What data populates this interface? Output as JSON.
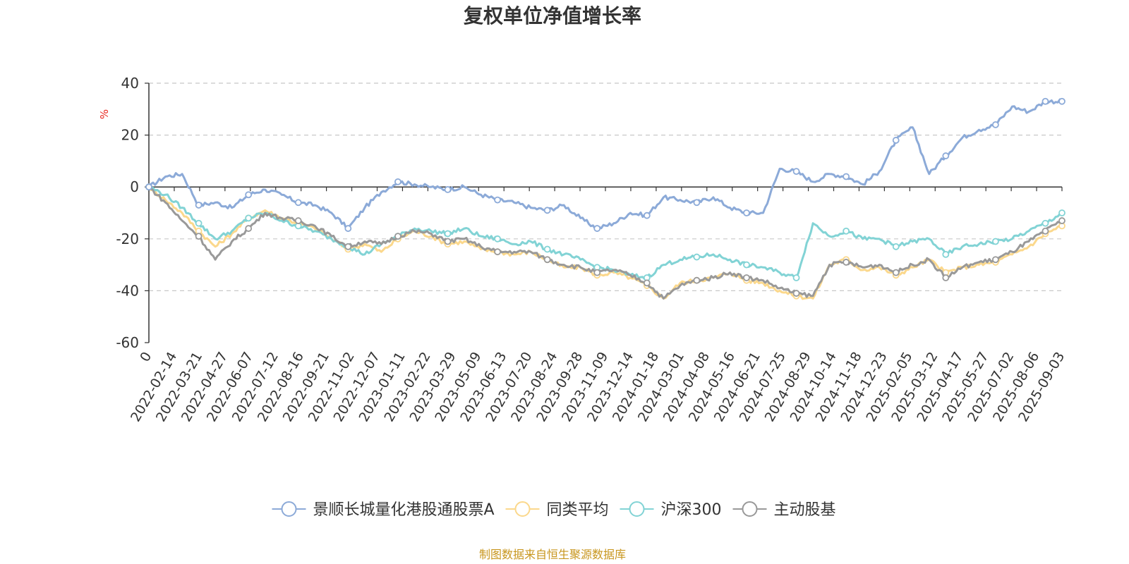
{
  "colors": {
    "series": [
      "#8caad8",
      "#fbd88c",
      "#82d3d5",
      "#999999"
    ],
    "source": "#c8961e",
    "unit": "#e8261f",
    "grid": "#c8c8c8",
    "axis": "#333333"
  },
  "source_text": "制图数据来自恒生聚源数据库",
  "chart_data": {
    "type": "line",
    "title": "复权单位净值增长率",
    "ylabel": "%",
    "xlabel": "",
    "ylim": [
      -60,
      40
    ],
    "yticks": [
      40,
      20,
      0,
      -20,
      -40,
      -60
    ],
    "grid": "horizontal dashed",
    "legend_position": "bottom-center",
    "x_ticks": [
      "0",
      "2022-02-14",
      "2022-03-21",
      "2022-04-27",
      "2022-06-07",
      "2022-07-12",
      "2022-08-16",
      "2022-09-21",
      "2022-11-02",
      "2022-12-07",
      "2023-01-11",
      "2023-02-22",
      "2023-03-29",
      "2023-05-09",
      "2023-06-13",
      "2023-07-20",
      "2023-08-24",
      "2023-09-28",
      "2023-11-09",
      "2023-12-14",
      "2024-01-18",
      "2024-03-01",
      "2024-04-08",
      "2024-05-16",
      "2024-06-21",
      "2024-07-25",
      "2024-08-29",
      "2024-10-14",
      "2024-11-18",
      "2024-12-23",
      "2025-02-05",
      "2025-03-12",
      "2025-04-17",
      "2025-05-27",
      "2025-07-02",
      "2025-08-06",
      "2025-09-03"
    ],
    "series": [
      {
        "name": "景顺长城量化港股通股票A",
        "color": "#8caad8",
        "values": [
          0,
          4,
          5,
          -7,
          -6,
          -8,
          -3,
          -1,
          -3,
          -6,
          -7,
          -10,
          -16,
          -8,
          -2,
          2,
          1,
          0,
          -1,
          0,
          -3,
          -5,
          -6,
          -8,
          -9,
          -7,
          -12,
          -16,
          -14,
          -10,
          -11,
          -4,
          -5,
          -6,
          -4,
          -8,
          -10,
          -10,
          7,
          6,
          2,
          5,
          4,
          1,
          6,
          18,
          23,
          5,
          12,
          19,
          22,
          24,
          31,
          29,
          33,
          33
        ]
      },
      {
        "name": "同类平均",
        "color": "#fbd88c",
        "values": [
          0,
          -5,
          -10,
          -17,
          -23,
          -18,
          -12,
          -9,
          -12,
          -14,
          -16,
          -20,
          -24,
          -22,
          -25,
          -20,
          -17,
          -19,
          -22,
          -21,
          -24,
          -25,
          -26,
          -25,
          -28,
          -31,
          -31,
          -34,
          -33,
          -35,
          -38,
          -43,
          -37,
          -36,
          -35,
          -33,
          -36,
          -37,
          -40,
          -42,
          -43,
          -30,
          -28,
          -32,
          -31,
          -34,
          -31,
          -28,
          -33,
          -31,
          -30,
          -29,
          -26,
          -23,
          -18,
          -15
        ]
      },
      {
        "name": "沪深300",
        "color": "#82d3d5",
        "values": [
          0,
          -3,
          -8,
          -14,
          -20,
          -17,
          -12,
          -10,
          -13,
          -15,
          -17,
          -20,
          -23,
          -26,
          -22,
          -19,
          -16,
          -17,
          -18,
          -16,
          -19,
          -20,
          -22,
          -21,
          -24,
          -26,
          -28,
          -31,
          -32,
          -34,
          -35,
          -30,
          -28,
          -27,
          -26,
          -28,
          -30,
          -31,
          -33,
          -35,
          -14,
          -19,
          -17,
          -20,
          -20,
          -23,
          -21,
          -20,
          -26,
          -23,
          -22,
          -21,
          -20,
          -17,
          -14,
          -10
        ]
      },
      {
        "name": "主动股基",
        "color": "#999999",
        "values": [
          0,
          -6,
          -13,
          -19,
          -28,
          -21,
          -16,
          -10,
          -12,
          -13,
          -15,
          -19,
          -23,
          -21,
          -22,
          -19,
          -17,
          -18,
          -21,
          -20,
          -23,
          -25,
          -25,
          -25,
          -28,
          -30,
          -31,
          -33,
          -32,
          -34,
          -37,
          -43,
          -38,
          -36,
          -35,
          -33,
          -35,
          -36,
          -39,
          -41,
          -42,
          -30,
          -29,
          -31,
          -30,
          -33,
          -30,
          -28,
          -35,
          -31,
          -29,
          -28,
          -25,
          -21,
          -17,
          -13
        ]
      }
    ]
  }
}
